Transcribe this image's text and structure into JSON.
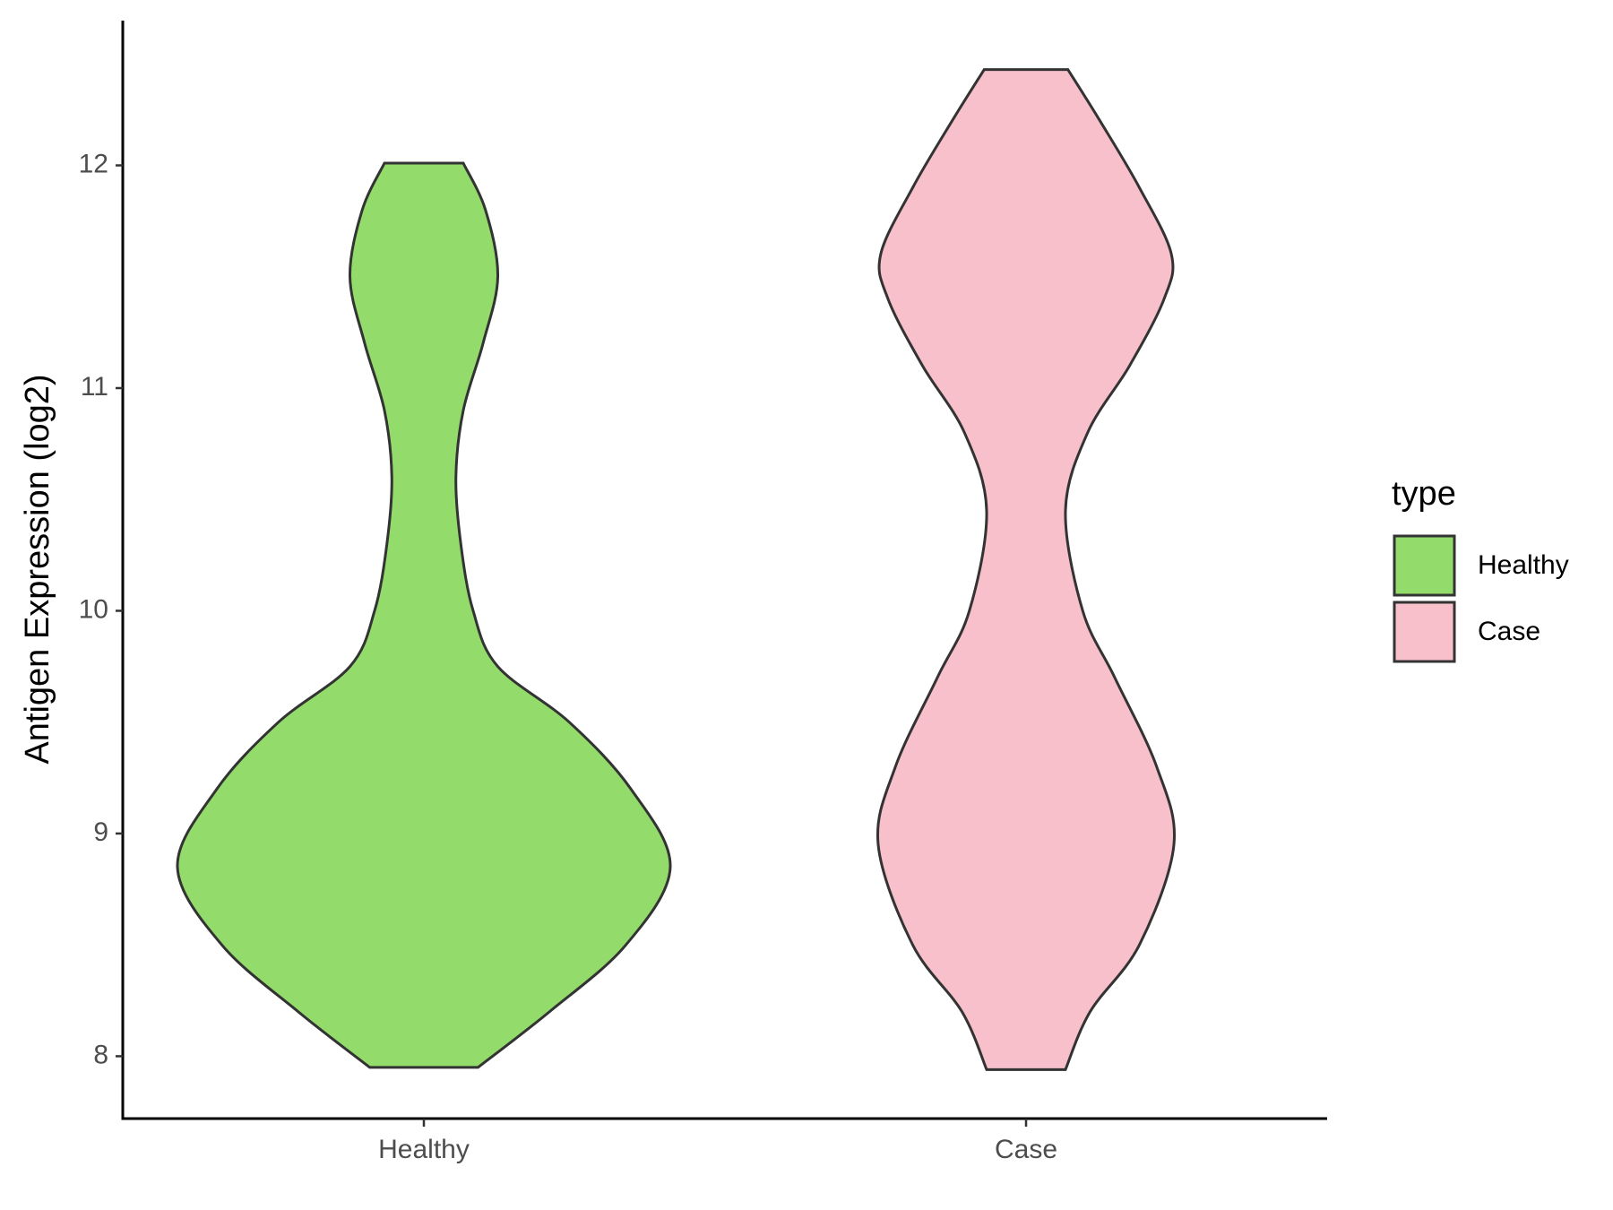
{
  "chart_data": {
    "type": "violin",
    "y_label": "Antigen Expression (log2)",
    "legend_title": "type",
    "categories": [
      "Healthy",
      "Case"
    ],
    "series": [
      {
        "name": "Healthy",
        "color": "#93dc6b",
        "y": [
          7.95,
          8.2,
          8.5,
          8.85,
          9.2,
          9.5,
          9.75,
          10.0,
          10.3,
          10.6,
          10.9,
          11.2,
          11.5,
          11.8,
          12.01
        ],
        "width": [
          0.22,
          0.51,
          0.82,
          1,
          0.84,
          0.59,
          0.3,
          0.2,
          0.15,
          0.13,
          0.16,
          0.24,
          0.3,
          0.25,
          0.16
        ]
      },
      {
        "name": "Case",
        "color": "#f7c0cb",
        "y": [
          7.94,
          8.2,
          8.5,
          8.95,
          9.3,
          9.7,
          10.0,
          10.45,
          10.8,
          11.1,
          11.4,
          11.6,
          11.9,
          12.2,
          12.43
        ],
        "width": [
          0.16,
          0.26,
          0.46,
          0.6,
          0.53,
          0.36,
          0.23,
          0.16,
          0.25,
          0.42,
          0.56,
          0.59,
          0.46,
          0.3,
          0.17
        ]
      }
    ],
    "ylim": [
      7.72,
      12.65
    ],
    "yticks": [
      8,
      9,
      10,
      11,
      12
    ],
    "grid": false,
    "legend": "right"
  }
}
